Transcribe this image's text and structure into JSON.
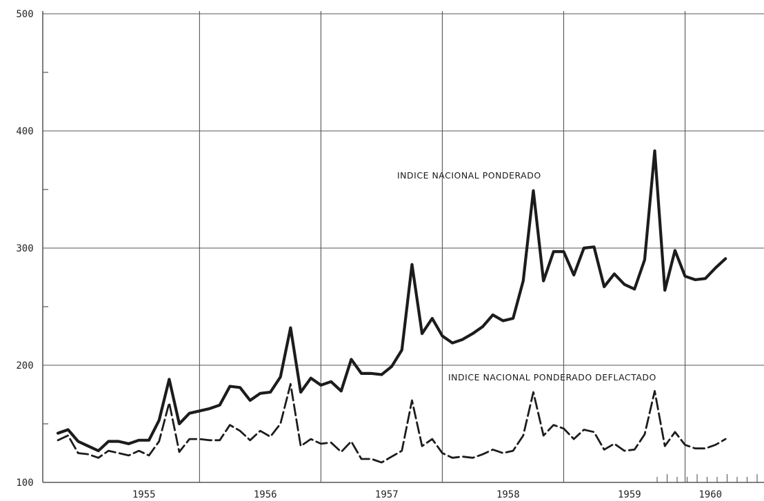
{
  "chart_data": {
    "type": "line",
    "title": "",
    "xlabel": "",
    "ylabel": "",
    "ylim": [
      100,
      500
    ],
    "y_ticks": [
      "100",
      "200",
      "300",
      "400",
      "500"
    ],
    "x_ticks": [
      "1955",
      "1956",
      "1957",
      "1958",
      "1959",
      "1960"
    ],
    "x_unit": "year (monthly observations)",
    "grid": true,
    "legend": "inline labels",
    "series": [
      {
        "name": "INDICE NACIONAL PONDERADO",
        "style": "solid",
        "start_month": "1954-10",
        "values": [
          142,
          145,
          135,
          131,
          127,
          135,
          135,
          133,
          136,
          136,
          153,
          188,
          150,
          159,
          161,
          163,
          166,
          182,
          181,
          170,
          176,
          177,
          190,
          232,
          177,
          189,
          183,
          186,
          178,
          205,
          193,
          193,
          192,
          199,
          213,
          286,
          227,
          240,
          225,
          219,
          222,
          227,
          233,
          243,
          238,
          240,
          272,
          349,
          272,
          297,
          297,
          277,
          300,
          301,
          267,
          278,
          269,
          265,
          290,
          383,
          264,
          298,
          276,
          273,
          274,
          283,
          291
        ]
      },
      {
        "name": "INDICE NACIONAL PONDERADO DEFLACTADO",
        "style": "dashed",
        "start_month": "1954-10",
        "values": [
          136,
          140,
          125,
          124,
          121,
          127,
          125,
          123,
          127,
          123,
          135,
          168,
          126,
          137,
          137,
          136,
          136,
          149,
          144,
          136,
          144,
          139,
          150,
          184,
          131,
          137,
          133,
          134,
          126,
          135,
          120,
          120,
          117,
          122,
          127,
          170,
          131,
          137,
          125,
          121,
          122,
          121,
          124,
          128,
          125,
          127,
          140,
          177,
          140,
          149,
          146,
          137,
          145,
          143,
          128,
          133,
          127,
          128,
          141,
          178,
          131,
          143,
          132,
          129,
          129,
          132,
          137
        ]
      }
    ]
  }
}
